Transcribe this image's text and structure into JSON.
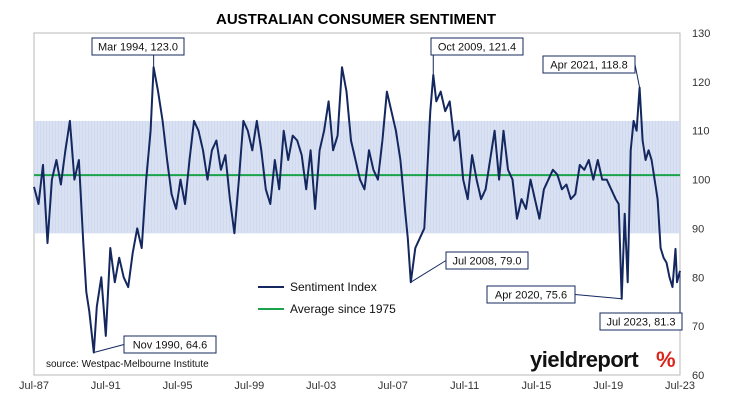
{
  "chart_data": {
    "type": "line",
    "title": "AUSTRALIAN CONSUMER SENTIMENT",
    "xlabel": "",
    "ylabel": "",
    "x_ticks": [
      "Jul-87",
      "Jul-91",
      "Jul-95",
      "Jul-99",
      "Jul-03",
      "Jul-07",
      "Jul-11",
      "Jul-15",
      "Jul-19",
      "Jul-23"
    ],
    "ylim": [
      60,
      130
    ],
    "y_ticks": [
      60,
      70,
      80,
      90,
      100,
      110,
      120,
      130
    ],
    "y_axis_side": "right",
    "band": {
      "from": 89,
      "to": 112,
      "color": "#cfd9ef"
    },
    "series": [
      {
        "name": "Sentiment Index",
        "color": "#14285f",
        "points": [
          [
            "1987-07",
            98.5
          ],
          [
            "1987-10",
            95
          ],
          [
            "1988-01",
            103
          ],
          [
            "1988-04",
            87
          ],
          [
            "1988-07",
            100
          ],
          [
            "1988-10",
            104
          ],
          [
            "1989-01",
            99
          ],
          [
            "1989-04",
            106
          ],
          [
            "1989-07",
            112
          ],
          [
            "1989-10",
            100
          ],
          [
            "1990-01",
            104
          ],
          [
            "1990-04",
            87
          ],
          [
            "1990-06",
            77
          ],
          [
            "1990-08",
            73
          ],
          [
            "1990-11",
            64.6
          ],
          [
            "1991-01",
            74
          ],
          [
            "1991-04",
            80
          ],
          [
            "1991-07",
            68
          ],
          [
            "1991-10",
            86
          ],
          [
            "1992-01",
            79
          ],
          [
            "1992-04",
            84
          ],
          [
            "1992-07",
            80
          ],
          [
            "1992-10",
            78
          ],
          [
            "1993-01",
            85
          ],
          [
            "1993-04",
            90
          ],
          [
            "1993-07",
            86
          ],
          [
            "1993-10",
            100
          ],
          [
            "1994-01",
            110
          ],
          [
            "1994-03",
            123
          ],
          [
            "1994-06",
            118
          ],
          [
            "1994-09",
            112
          ],
          [
            "1994-12",
            104
          ],
          [
            "1995-03",
            97
          ],
          [
            "1995-06",
            94
          ],
          [
            "1995-09",
            100
          ],
          [
            "1995-12",
            95
          ],
          [
            "1996-03",
            104
          ],
          [
            "1996-06",
            112
          ],
          [
            "1996-09",
            110
          ],
          [
            "1996-12",
            106
          ],
          [
            "1997-03",
            100
          ],
          [
            "1997-06",
            106
          ],
          [
            "1997-09",
            108
          ],
          [
            "1997-12",
            102
          ],
          [
            "1998-03",
            105
          ],
          [
            "1998-06",
            96
          ],
          [
            "1998-09",
            89
          ],
          [
            "1998-12",
            100
          ],
          [
            "1999-03",
            112
          ],
          [
            "1999-06",
            110
          ],
          [
            "1999-09",
            106
          ],
          [
            "1999-12",
            112
          ],
          [
            "2000-03",
            106
          ],
          [
            "2000-06",
            98
          ],
          [
            "2000-09",
            95
          ],
          [
            "2000-12",
            104
          ],
          [
            "2001-03",
            98
          ],
          [
            "2001-06",
            110
          ],
          [
            "2001-09",
            104
          ],
          [
            "2001-12",
            109
          ],
          [
            "2002-03",
            108
          ],
          [
            "2002-06",
            105
          ],
          [
            "2002-09",
            98
          ],
          [
            "2002-12",
            106
          ],
          [
            "2003-03",
            94
          ],
          [
            "2003-06",
            106
          ],
          [
            "2003-09",
            110
          ],
          [
            "2003-12",
            116
          ],
          [
            "2004-03",
            106
          ],
          [
            "2004-06",
            109
          ],
          [
            "2004-09",
            123
          ],
          [
            "2004-12",
            118
          ],
          [
            "2005-03",
            108
          ],
          [
            "2005-06",
            104
          ],
          [
            "2005-09",
            100
          ],
          [
            "2005-12",
            98
          ],
          [
            "2006-03",
            106
          ],
          [
            "2006-06",
            102
          ],
          [
            "2006-09",
            100
          ],
          [
            "2006-12",
            108
          ],
          [
            "2007-03",
            118
          ],
          [
            "2007-06",
            114
          ],
          [
            "2007-09",
            110
          ],
          [
            "2007-12",
            104
          ],
          [
            "2008-03",
            94
          ],
          [
            "2008-05",
            88
          ],
          [
            "2008-07",
            79.0
          ],
          [
            "2008-10",
            86
          ],
          [
            "2009-01",
            88
          ],
          [
            "2009-04",
            90
          ],
          [
            "2009-06",
            102
          ],
          [
            "2009-08",
            114
          ],
          [
            "2009-10",
            121.4
          ],
          [
            "2009-12",
            116
          ],
          [
            "2010-03",
            118
          ],
          [
            "2010-06",
            114
          ],
          [
            "2010-09",
            116
          ],
          [
            "2010-12",
            108
          ],
          [
            "2011-03",
            110
          ],
          [
            "2011-06",
            100
          ],
          [
            "2011-09",
            96
          ],
          [
            "2011-12",
            105
          ],
          [
            "2012-03",
            100
          ],
          [
            "2012-06",
            96
          ],
          [
            "2012-09",
            98
          ],
          [
            "2012-12",
            104
          ],
          [
            "2013-03",
            110
          ],
          [
            "2013-06",
            100
          ],
          [
            "2013-09",
            110
          ],
          [
            "2013-12",
            102
          ],
          [
            "2014-03",
            100
          ],
          [
            "2014-06",
            92
          ],
          [
            "2014-09",
            96
          ],
          [
            "2014-12",
            94
          ],
          [
            "2015-03",
            100
          ],
          [
            "2015-06",
            96
          ],
          [
            "2015-09",
            92
          ],
          [
            "2015-12",
            98
          ],
          [
            "2016-03",
            100
          ],
          [
            "2016-06",
            102
          ],
          [
            "2016-09",
            101
          ],
          [
            "2016-12",
            98
          ],
          [
            "2017-03",
            99
          ],
          [
            "2017-06",
            96
          ],
          [
            "2017-09",
            97
          ],
          [
            "2017-12",
            103
          ],
          [
            "2018-03",
            102
          ],
          [
            "2018-06",
            104
          ],
          [
            "2018-09",
            100
          ],
          [
            "2018-12",
            104
          ],
          [
            "2019-03",
            100
          ],
          [
            "2019-06",
            100
          ],
          [
            "2019-09",
            98
          ],
          [
            "2019-12",
            96
          ],
          [
            "2020-02",
            95
          ],
          [
            "2020-04",
            75.6
          ],
          [
            "2020-06",
            93
          ],
          [
            "2020-08",
            79
          ],
          [
            "2020-10",
            106
          ],
          [
            "2020-12",
            112
          ],
          [
            "2021-02",
            110
          ],
          [
            "2021-04",
            118.8
          ],
          [
            "2021-06",
            108
          ],
          [
            "2021-08",
            104
          ],
          [
            "2021-10",
            106
          ],
          [
            "2021-12",
            104
          ],
          [
            "2022-02",
            100
          ],
          [
            "2022-04",
            96
          ],
          [
            "2022-06",
            86
          ],
          [
            "2022-08",
            84
          ],
          [
            "2022-10",
            83
          ],
          [
            "2022-12",
            80
          ],
          [
            "2023-02",
            78
          ],
          [
            "2023-04",
            85.8
          ],
          [
            "2023-05",
            79
          ],
          [
            "2023-07",
            81.3
          ]
        ]
      },
      {
        "name": "Average since 1975",
        "color": "#1aa34a",
        "y": 100.9
      }
    ],
    "annotations": [
      {
        "label": "Mar 1994, 123.0",
        "x": "1994-03",
        "y": 123.0
      },
      {
        "label": "Nov 1990, 64.6",
        "x": "1990-11",
        "y": 64.6
      },
      {
        "label": "Oct 2009, 121.4",
        "x": "2009-10",
        "y": 121.4
      },
      {
        "label": "Jul 2008, 79.0",
        "x": "2008-07",
        "y": 79.0
      },
      {
        "label": "Apr 2021, 118.8",
        "x": "2021-04",
        "y": 118.8
      },
      {
        "label": "Apr 2020, 75.6",
        "x": "2020-04",
        "y": 75.6
      },
      {
        "label": "Jul 2023, 81.3",
        "x": "2023-07",
        "y": 81.3
      }
    ],
    "legend_position": "bottom-center",
    "grid": false,
    "source": "source: Westpac-Melbourne Institute"
  },
  "brand": {
    "text": "yieldreport",
    "suffix": "%",
    "color_accent": "#d9261c"
  }
}
